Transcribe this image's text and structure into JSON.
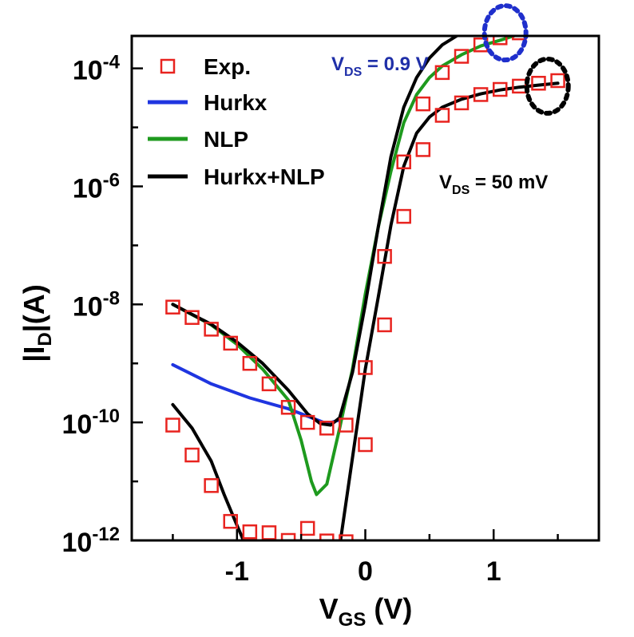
{
  "chart_data": {
    "type": "scatter",
    "xlabel_main": "V",
    "xlabel_sub": "GS",
    "xlabel_unit": " (V)",
    "ylabel_pre": "|I",
    "ylabel_sub": "D",
    "ylabel_post": "|(A)",
    "xlim": [
      -1.82,
      1.82
    ],
    "ylim_log10": [
      -12,
      -3.45
    ],
    "y_scale": "log",
    "x_ticks": [
      {
        "v": -1,
        "label": "-1"
      },
      {
        "v": 0,
        "label": "0"
      },
      {
        "v": 1,
        "label": "1"
      }
    ],
    "y_ticks": [
      {
        "exp": -12,
        "base": "10",
        "sup": "-12"
      },
      {
        "exp": -10,
        "base": "10",
        "sup": "-10"
      },
      {
        "exp": -8,
        "base": "10",
        "sup": "-8"
      },
      {
        "exp": -6,
        "base": "10",
        "sup": "-6"
      },
      {
        "exp": -4,
        "base": "10",
        "sup": "-4"
      }
    ],
    "legend": [
      {
        "label": "Exp.",
        "kind": "marker",
        "color": "#e8231f"
      },
      {
        "label": "Hurkx",
        "kind": "line",
        "color": "#1f35e0"
      },
      {
        "label": "NLP",
        "kind": "line",
        "color": "#1e9a1e"
      },
      {
        "label": "Hurkx+NLP",
        "kind": "line",
        "color": "#000000"
      }
    ],
    "annotations": [
      {
        "pre": "V",
        "sub": "DS",
        "post": " = 0.9 V",
        "color": "#1f2fa8"
      },
      {
        "pre": "V",
        "sub": "DS",
        "post": " = 50 mV",
        "color": "#000000"
      }
    ],
    "series": [
      {
        "name": "Exp.",
        "kind": "marker",
        "color": "#e8231f",
        "points": [
          [
            -1.5,
            9e-09
          ],
          [
            -1.35,
            6e-09
          ],
          [
            -1.2,
            3.8e-09
          ],
          [
            -1.05,
            2.2e-09
          ],
          [
            -0.9,
            1e-09
          ],
          [
            -0.75,
            4.5e-10
          ],
          [
            -0.6,
            1.8e-10
          ],
          [
            -0.45,
            1e-10
          ],
          [
            -0.3,
            8e-11
          ],
          [
            -0.15,
            9e-11
          ],
          [
            0.0,
            8.5e-10
          ],
          [
            0.15,
            6.5e-08
          ],
          [
            0.3,
            2.6e-06
          ],
          [
            0.45,
            2.5e-05
          ],
          [
            0.6,
            8.5e-05
          ],
          [
            0.75,
            0.00016
          ],
          [
            0.9,
            0.00025
          ],
          [
            1.05,
            0.00033
          ],
          [
            1.2,
            0.0004
          ],
          [
            1.35,
            0.0005
          ],
          [
            1.5,
            0.00056
          ],
          [
            -1.5,
            9e-11
          ],
          [
            -1.35,
            2.8e-11
          ],
          [
            -1.2,
            8.5e-12
          ],
          [
            -1.05,
            2.1e-12
          ],
          [
            -0.9,
            1.4e-12
          ],
          [
            -0.75,
            1.35e-12
          ],
          [
            -0.6,
            1e-12
          ],
          [
            -0.45,
            1.6e-12
          ],
          [
            -0.3,
            9.8e-13
          ],
          [
            -0.15,
            9.5e-13
          ],
          [
            0.0,
            4.2e-11
          ],
          [
            0.15,
            4.5e-09
          ],
          [
            0.3,
            3.1e-07
          ],
          [
            0.45,
            4.2e-06
          ],
          [
            0.6,
            1.6e-05
          ],
          [
            0.75,
            2.6e-05
          ],
          [
            0.9,
            3.6e-05
          ],
          [
            1.05,
            4.4e-05
          ],
          [
            1.2,
            5e-05
          ],
          [
            1.35,
            5.6e-05
          ],
          [
            1.5,
            6.2e-05
          ]
        ]
      },
      {
        "name": "Hurkx",
        "kind": "line",
        "color": "#1f35e0",
        "points": [
          [
            -1.5,
            9.5e-10
          ],
          [
            -1.2,
            4.5e-10
          ],
          [
            -0.9,
            2.6e-10
          ],
          [
            -0.6,
            1.7e-10
          ],
          [
            -0.42,
            1.2e-10
          ],
          [
            -0.3,
            9.5e-11
          ],
          [
            -0.2,
            1.1e-10
          ]
        ]
      },
      {
        "name": "NLP",
        "kind": "line",
        "color": "#1e9a1e",
        "points": [
          [
            -1.5,
            1e-08
          ],
          [
            -1.2,
            4.5e-09
          ],
          [
            -1.0,
            2.1e-09
          ],
          [
            -0.8,
            8e-10
          ],
          [
            -0.6,
            2.4e-10
          ],
          [
            -0.5,
            5e-11
          ],
          [
            -0.42,
            1e-11
          ],
          [
            -0.38,
            6e-12
          ],
          [
            -0.3,
            9e-12
          ],
          [
            -0.2,
            8e-11
          ],
          [
            -0.1,
            8e-10
          ],
          [
            0.0,
            1.5e-08
          ],
          [
            0.1,
            2e-07
          ],
          [
            0.2,
            1.8e-06
          ],
          [
            0.3,
            1.2e-05
          ],
          [
            0.4,
            3.6e-05
          ],
          [
            0.5,
            7e-05
          ],
          [
            0.6,
            0.00011
          ],
          [
            0.75,
            0.00017
          ],
          [
            0.9,
            0.00024
          ],
          [
            1.05,
            0.0003
          ],
          [
            1.2,
            0.00038
          ],
          [
            1.35,
            0.00046
          ],
          [
            1.5,
            0.00053
          ]
        ]
      },
      {
        "name": "Hurkx+NLP",
        "kind": "line",
        "color": "#000000",
        "points": [
          [
            -1.5,
            1e-08
          ],
          [
            -1.2,
            4.6e-09
          ],
          [
            -1.0,
            2.3e-09
          ],
          [
            -0.8,
            1e-09
          ],
          [
            -0.6,
            3.5e-10
          ],
          [
            -0.45,
            1.4e-10
          ],
          [
            -0.35,
            9.5e-11
          ],
          [
            -0.27,
            9e-11
          ],
          [
            -0.2,
            1.2e-10
          ],
          [
            -0.1,
            7e-10
          ],
          [
            0.0,
            1e-08
          ],
          [
            0.1,
            2e-07
          ],
          [
            0.2,
            3.2e-06
          ],
          [
            0.3,
            2.2e-05
          ],
          [
            0.4,
            7e-05
          ],
          [
            0.5,
            0.00015
          ],
          [
            0.6,
            0.00025
          ],
          [
            0.75,
            0.0004
          ],
          [
            0.9,
            0.00055
          ],
          [
            1.05,
            0.00068
          ],
          [
            1.2,
            0.0008
          ],
          [
            1.35,
            0.0009
          ],
          [
            1.5,
            0.001
          ]
        ]
      },
      {
        "name": "Hurkx+NLP",
        "kind": "line",
        "color": "#000000",
        "points": [
          [
            -1.5,
            2e-10
          ],
          [
            -1.35,
            8e-11
          ],
          [
            -1.2,
            2.2e-11
          ],
          [
            -1.1,
            6e-12
          ],
          [
            -1.0,
            1.8e-12
          ],
          [
            -0.93,
            8e-13
          ],
          [
            -0.2,
            8e-13
          ],
          [
            -0.1,
            2.5e-11
          ],
          [
            0.0,
            8e-10
          ],
          [
            0.1,
            1.3e-08
          ],
          [
            0.2,
            2.2e-07
          ],
          [
            0.3,
            2.2e-06
          ],
          [
            0.4,
            8e-06
          ],
          [
            0.5,
            1.5e-05
          ],
          [
            0.6,
            2.2e-05
          ],
          [
            0.75,
            3e-05
          ],
          [
            0.9,
            3.7e-05
          ],
          [
            1.05,
            4.3e-05
          ],
          [
            1.2,
            4.8e-05
          ],
          [
            1.35,
            5.2e-05
          ],
          [
            1.5,
            5.6e-05
          ]
        ]
      }
    ],
    "dotted_circles": [
      {
        "cx_v": 1.09,
        "cy_i": 0.0004,
        "color": "#1f2fcc"
      },
      {
        "cx_v": 1.42,
        "cy_i": 5e-05,
        "color": "#000000"
      }
    ]
  }
}
